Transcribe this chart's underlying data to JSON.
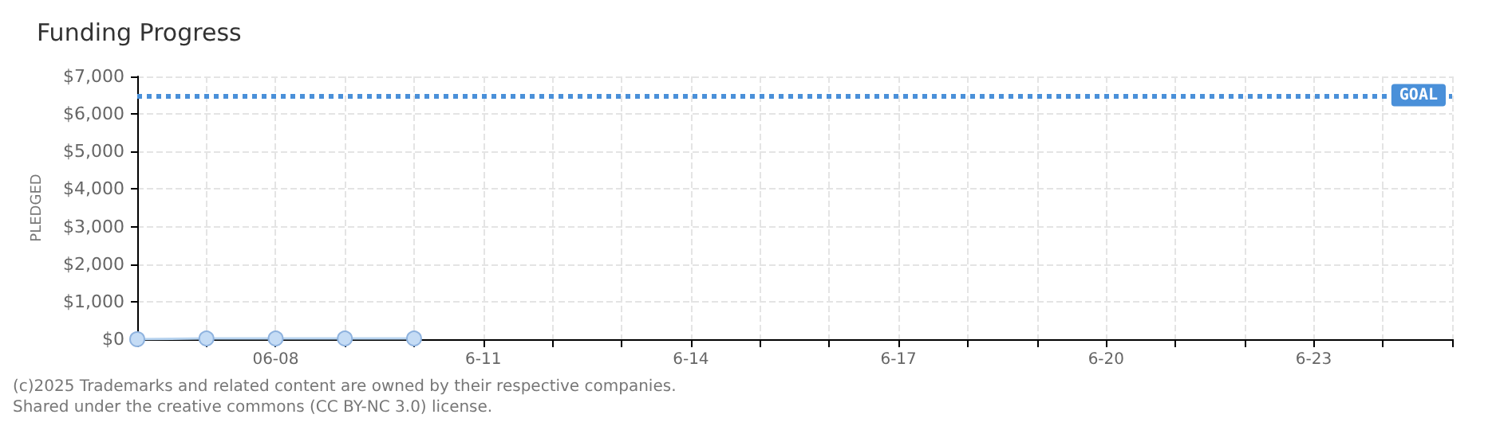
{
  "chart_data": {
    "type": "line",
    "title": "Funding Progress",
    "ylabel": "PLEDGED",
    "x": [
      "--06-06",
      "--06-07",
      "--06-08",
      "--06-09",
      "--06-10"
    ],
    "series": [
      {
        "color": "#c5dcf5",
        "values": [
          0,
          20,
          20,
          20,
          20
        ]
      }
    ],
    "xlim": [
      "--06-06",
      "--06-25"
    ],
    "xticks": [
      {
        "value": "--06-06",
        "label": null
      },
      {
        "value": "--06-07",
        "label": null
      },
      {
        "value": "--06-08",
        "label": "06-08"
      },
      {
        "value": "--06-09",
        "label": null
      },
      {
        "value": "--06-10",
        "label": null
      },
      {
        "value": "--06-11",
        "label": "6-11"
      },
      {
        "value": "--06-12",
        "label": null
      },
      {
        "value": "--06-13",
        "label": null
      },
      {
        "value": "--06-14",
        "label": "6-14"
      },
      {
        "value": "--06-15",
        "label": null
      },
      {
        "value": "--06-16",
        "label": null
      },
      {
        "value": "--06-17",
        "label": "6-17"
      },
      {
        "value": "--06-18",
        "label": null
      },
      {
        "value": "--06-19",
        "label": null
      },
      {
        "value": "--06-20",
        "label": "6-20"
      },
      {
        "value": "--06-21",
        "label": null
      },
      {
        "value": "--06-22",
        "label": null
      },
      {
        "value": "--06-23",
        "label": "6-23"
      },
      {
        "value": "--06-24",
        "label": null
      },
      {
        "value": "--06-25",
        "label": null
      }
    ],
    "ylim": [
      0,
      7000
    ],
    "yticks": [
      {
        "value": 0,
        "label": "$0"
      },
      {
        "value": 1000,
        "label": "$1,000"
      },
      {
        "value": 2000,
        "label": "$2,000"
      },
      {
        "value": 3000,
        "label": "$3,000"
      },
      {
        "value": 4000,
        "label": "$4,000"
      },
      {
        "value": 5000,
        "label": "$5,000"
      },
      {
        "value": 6000,
        "label": "$6,000"
      },
      {
        "value": 7000,
        "label": "$7,000"
      }
    ],
    "ref_lines": [
      {
        "axis": "y",
        "value": 6500,
        "label": "GOAL",
        "color": "#4a90d9",
        "line_style": "dotted"
      }
    ],
    "grid": true,
    "marker": "circle",
    "line_style": "solid",
    "annotations": [
      "(c)2025 Trademarks and related content are owned by their respective companies.",
      "Shared under the creative commons (CC BY-NC 3.0) license."
    ]
  }
}
